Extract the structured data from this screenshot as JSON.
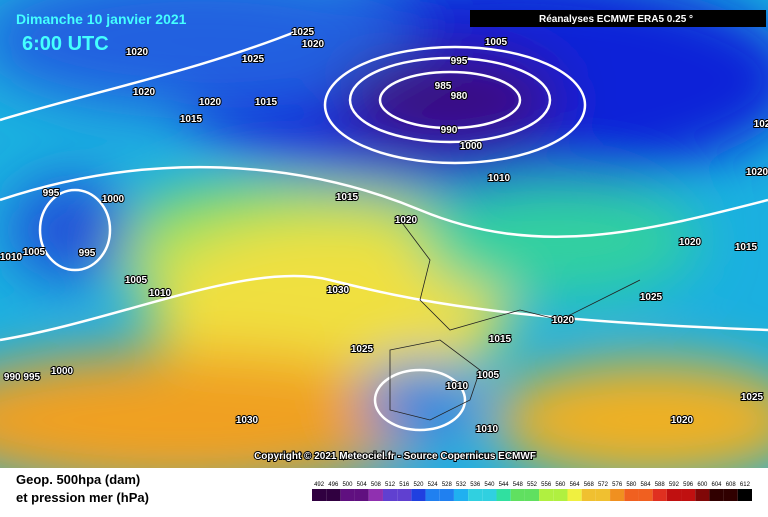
{
  "header": {
    "date": "Dimanche 10 janvier 2021",
    "time": "6:00 UTC",
    "source": "Réanalyses ECMWF ERA5 0.25 °"
  },
  "isobar_labels": [
    "1025",
    "1020",
    "1020",
    "1025",
    "1020",
    "1020",
    "1015",
    "1015",
    "1005",
    "995",
    "985",
    "980",
    "990",
    "1000",
    "1010",
    "995",
    "1000",
    "1015",
    "1020",
    "1005",
    "995",
    "1010",
    "1020",
    "1015",
    "1005",
    "1010",
    "1030",
    "1025",
    "1020",
    "1015",
    "1025",
    "990 995",
    "1000",
    "1010",
    "1005",
    "1030",
    "1010",
    "1020",
    "1025",
    "102",
    "1020"
  ],
  "copyright": "Copyright © 2021 Meteociel.fr - Source Copernicus ECMWF",
  "legend": {
    "line1": "Geop. 500hpa (dam)",
    "line2": "et pression mer (hPa)",
    "scale": [
      492,
      496,
      500,
      504,
      508,
      512,
      516,
      520,
      524,
      528,
      532,
      536,
      540,
      544,
      548,
      552,
      556,
      560,
      564,
      568,
      572,
      576,
      580,
      584,
      588,
      592,
      596,
      600,
      604,
      608,
      612
    ]
  }
}
